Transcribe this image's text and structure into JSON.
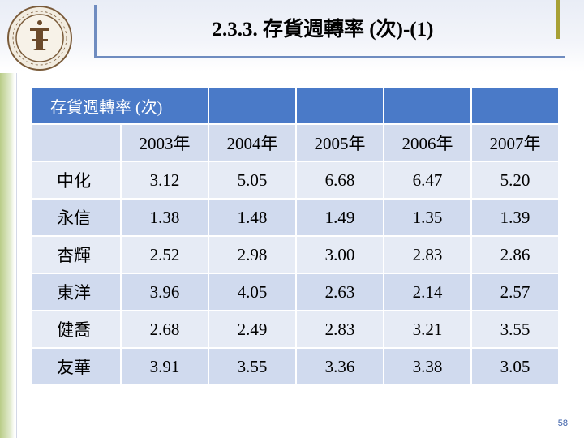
{
  "slide": {
    "title": "2.3.3. 存貨週轉率 (次)-(1)",
    "page_number": "58"
  },
  "table": {
    "caption": "存貨週轉率 (次)",
    "years": [
      "2003年",
      "2004年",
      "2005年",
      "2006年",
      "2007年"
    ],
    "rows": [
      {
        "name": "中化",
        "values": [
          "3.12",
          "5.05",
          "6.68",
          "6.47",
          "5.20"
        ]
      },
      {
        "name": "永信",
        "values": [
          "1.38",
          "1.48",
          "1.49",
          "1.35",
          "1.39"
        ]
      },
      {
        "name": "杏輝",
        "values": [
          "2.52",
          "2.98",
          "3.00",
          "2.83",
          "2.86"
        ]
      },
      {
        "name": "東洋",
        "values": [
          "3.96",
          "4.05",
          "2.63",
          "2.14",
          "2.57"
        ]
      },
      {
        "name": "健喬",
        "values": [
          "2.68",
          "2.49",
          "2.83",
          "3.21",
          "3.55"
        ]
      },
      {
        "name": "友華",
        "values": [
          "3.91",
          "3.55",
          "3.36",
          "3.38",
          "3.05"
        ]
      }
    ]
  },
  "colors": {
    "header_blue": "#4a7ac8",
    "row_light": "#e6ebf5",
    "row_alt": "#d0daee",
    "accent_olive": "#a7a035",
    "logo_ring": "#7a5b3a"
  }
}
